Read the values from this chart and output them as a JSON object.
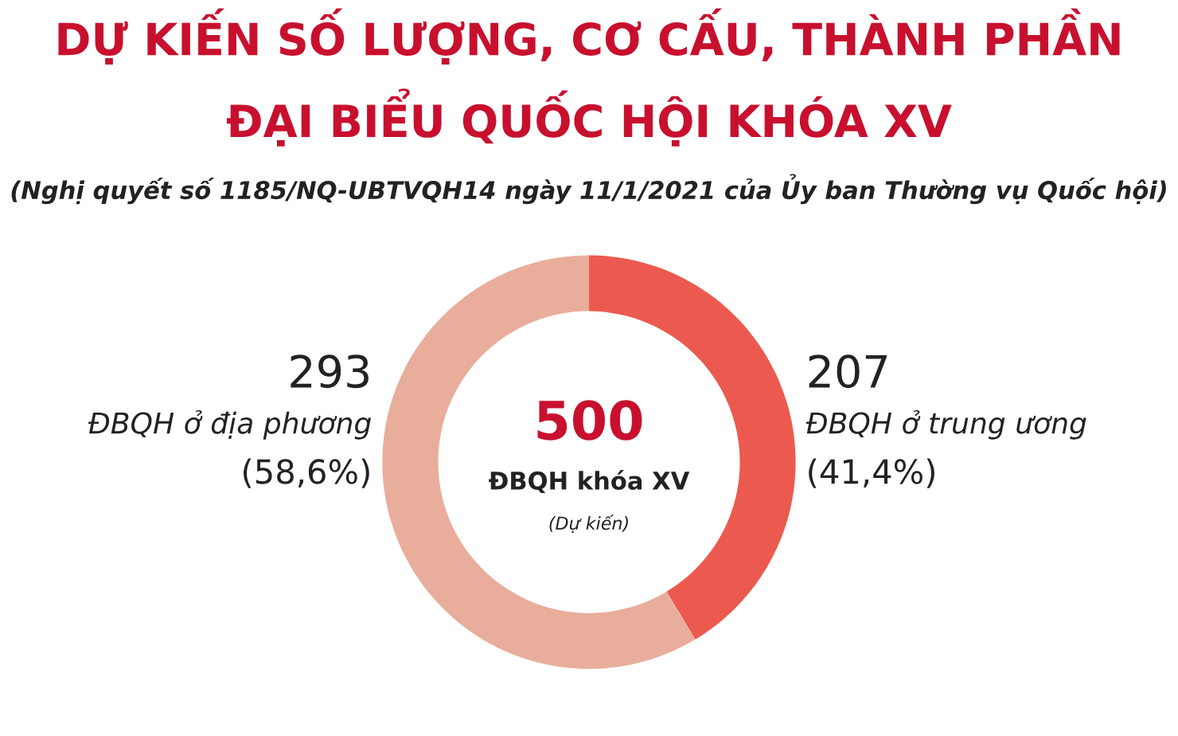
{
  "chart_data": {
    "type": "donut",
    "title": "DỰ KIẾN SỐ LƯỢNG, CƠ CẤU, THÀNH PHẦN\nĐẠI BIỂU QUỐC HỘI KHÓA XV",
    "subtitle": "(Nghị quyết số 1185/NQ-UBTVQH14 ngày 11/1/2021 của Ủy ban Thường vụ Quốc hội)",
    "categories": [
      "ĐBQH ở trung ương",
      "ĐBQH ở địa phương"
    ],
    "values": [
      207,
      293
    ],
    "value_labels": [
      "207",
      "293"
    ],
    "colors": [
      "#ec5a4f",
      "#e9ae9b"
    ],
    "annotations": [
      "(41,4%)",
      "(58,6%)",
      "500",
      "ĐBQH khóa XV",
      "(Dự kiến)"
    ]
  }
}
